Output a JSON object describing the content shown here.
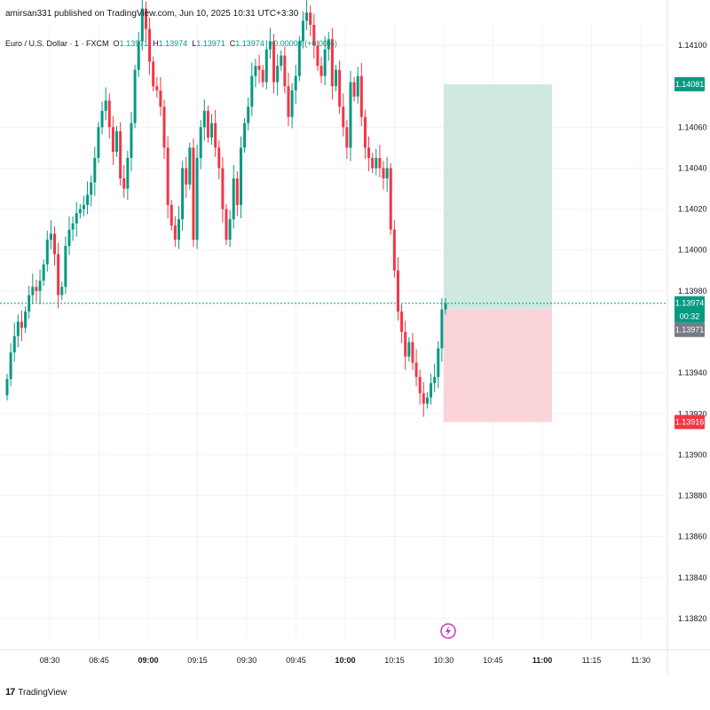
{
  "header": {
    "published": "amirsan331 published on TradingView.com, Jun 10, 2025 10:31 UTC+3:30"
  },
  "legend": {
    "symbol": "Euro / U.S. Dollar · 1 · FXCM",
    "o_label": "O",
    "o_value": "1.13971",
    "h_label": "H",
    "h_value": "1.13974",
    "l_label": "L",
    "l_value": "1.13971",
    "c_label": "C",
    "c_value": "1.13974",
    "change": "+0.00003 (+0.00%)"
  },
  "footer": {
    "logo": "17",
    "brand": "TradingView"
  },
  "colors": {
    "up": "#089981",
    "down": "#f23645",
    "tp_zone": "#cfe9e1",
    "sl_zone": "#fad4d8",
    "badge_green": "#089981",
    "badge_red": "#f23645",
    "badge_gray": "#787b86"
  },
  "chart_data": {
    "type": "candlestick",
    "y_range": [
      1.1381,
      1.1411
    ],
    "y_ticks": [
      "1.14100",
      "1.14060",
      "1.14040",
      "1.14020",
      "1.14000",
      "1.13980",
      "1.13940",
      "1.13920",
      "1.13900",
      "1.13880",
      "1.13860",
      "1.13840",
      "1.13820"
    ],
    "x_ticks": [
      {
        "label": "08:30",
        "bold": false
      },
      {
        "label": "08:45",
        "bold": false
      },
      {
        "label": "09:00",
        "bold": true
      },
      {
        "label": "09:15",
        "bold": false
      },
      {
        "label": "09:30",
        "bold": false
      },
      {
        "label": "09:45",
        "bold": false
      },
      {
        "label": "10:00",
        "bold": true
      },
      {
        "label": "10:15",
        "bold": false
      },
      {
        "label": "10:30",
        "bold": false
      },
      {
        "label": "10:45",
        "bold": false
      },
      {
        "label": "11:00",
        "bold": true
      },
      {
        "label": "11:15",
        "bold": false
      },
      {
        "label": "11:30",
        "bold": false
      }
    ],
    "closes": [
      1.13937,
      1.1395,
      1.13958,
      1.13965,
      1.13962,
      1.1397,
      1.13978,
      1.13982,
      1.1398,
      1.13985,
      1.13993,
      1.14005,
      1.14008,
      1.13998,
      1.13978,
      1.13982,
      1.14002,
      1.1401,
      1.14013,
      1.14018,
      1.1402,
      1.14022,
      1.14027,
      1.14033,
      1.14045,
      1.1406,
      1.14068,
      1.14073,
      1.1406,
      1.14048,
      1.14058,
      1.14035,
      1.1403,
      1.14045,
      1.14062,
      1.14088,
      1.14102,
      1.14118,
      1.14108,
      1.14092,
      1.1408,
      1.14078,
      1.1407,
      1.1405,
      1.14022,
      1.14012,
      1.14005,
      1.14015,
      1.1404,
      1.14032,
      1.1405,
      1.14005,
      1.14045,
      1.1406,
      1.14068,
      1.14055,
      1.14062,
      1.1405,
      1.1404,
      1.1402,
      1.14005,
      1.14015,
      1.14035,
      1.14022,
      1.1405,
      1.14062,
      1.1407,
      1.14085,
      1.1409,
      1.14088,
      1.14082,
      1.14098,
      1.14102,
      1.14082,
      1.1409,
      1.14095,
      1.1408,
      1.14065,
      1.14078,
      1.14085,
      1.14102,
      1.14112,
      1.14116,
      1.1411,
      1.141,
      1.1409,
      1.14085,
      1.14098,
      1.14103,
      1.1408,
      1.14088,
      1.1407,
      1.1406,
      1.1405,
      1.14082,
      1.14075,
      1.14085,
      1.14065,
      1.1405,
      1.14045,
      1.1404,
      1.14045,
      1.1404,
      1.14035,
      1.1404,
      1.1401,
      1.1399,
      1.1397,
      1.1396,
      1.13948,
      1.13955,
      1.13945,
      1.13938,
      1.1393,
      1.13925,
      1.13928,
      1.13935,
      1.13938,
      1.13952,
      1.13971,
      1.13974
    ],
    "current_price": "1.13974",
    "countdown": "00:32",
    "bid_price": "1.13971",
    "position": {
      "take_profit": "1.14081",
      "entry": "1.13971",
      "stop_loss": "1.13916",
      "tp": 1.14081,
      "entry_value": 1.13971,
      "sl": 1.13916
    }
  }
}
